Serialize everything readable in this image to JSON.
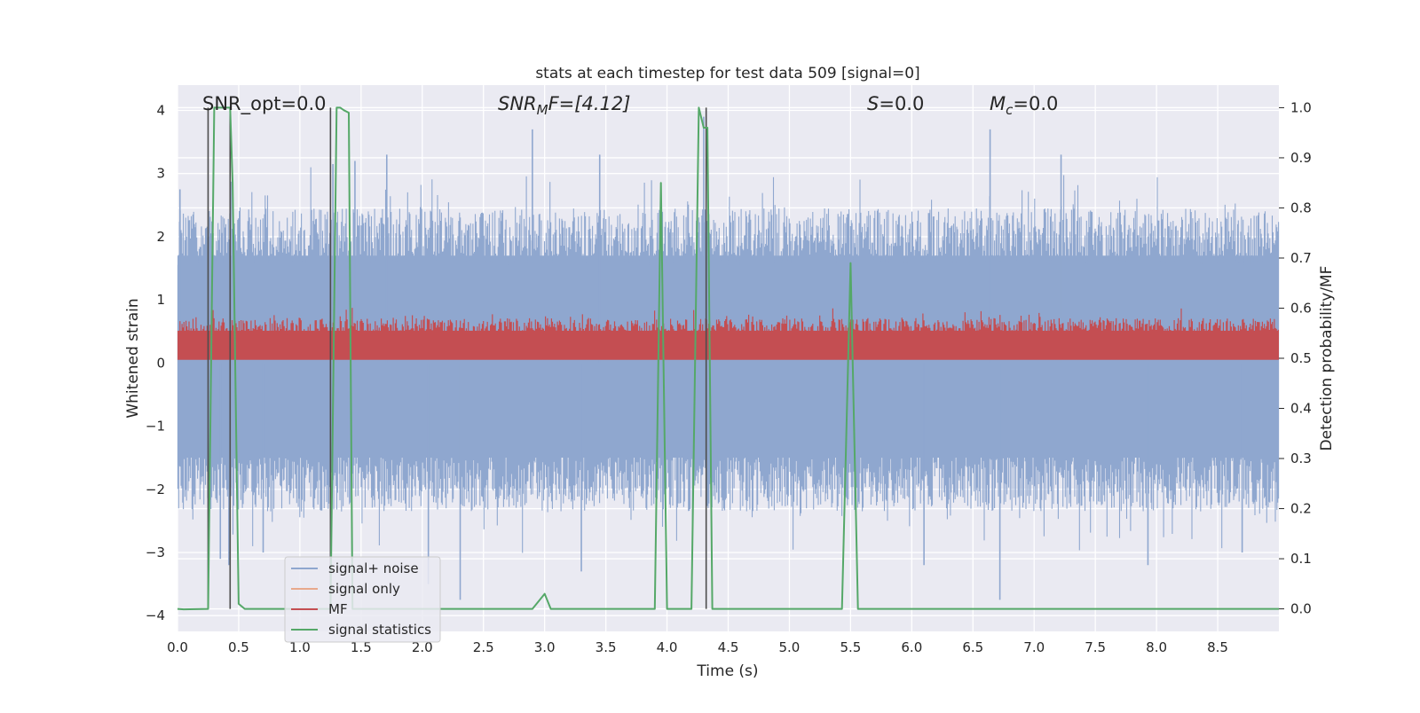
{
  "chart_data": {
    "type": "line",
    "title": "stats at each timestep for test data 509 [signal=0]",
    "xlabel": "Time (s)",
    "ylabel": "Whitened strain",
    "ylabel_right": "Detection probability/MF",
    "xlim": [
      0.0,
      9.0
    ],
    "ylim": [
      -4.25,
      4.4
    ],
    "ylim_right": [
      -0.045,
      1.045
    ],
    "x_ticks": [
      "0.0",
      "0.5",
      "1.0",
      "1.5",
      "2.0",
      "2.5",
      "3.0",
      "3.5",
      "4.0",
      "4.5",
      "5.0",
      "5.5",
      "6.0",
      "6.5",
      "7.0",
      "7.5",
      "8.0",
      "8.5"
    ],
    "y_ticks": [
      "4",
      "3",
      "2",
      "1",
      "0",
      "−1",
      "−2",
      "−3",
      "−4"
    ],
    "y_ticks_right": [
      "1.0",
      "0.9",
      "0.8",
      "0.7",
      "0.6",
      "0.5",
      "0.4",
      "0.3",
      "0.2",
      "0.1",
      "0.0"
    ],
    "grid": true,
    "legend_placement": "lower-left",
    "annotations": {
      "snr_opt": "SNR_opt=0.0",
      "snr_mf_main": "SNR",
      "snr_mf_sub": "M",
      "snr_mf_rest": "F=[4.12]",
      "s_italic": "S",
      "s_rest": "=0.0",
      "mc_main": "M",
      "mc_sub": "c",
      "mc_rest": "=0.0"
    },
    "series": [
      {
        "name": "signal+ noise",
        "color": "#8fa7cf",
        "style": "noise band, envelope about ±2.0 with spikes",
        "spikes": [
          [
            0.02,
            2.75
          ],
          [
            0.35,
            -3.1
          ],
          [
            0.42,
            -3.2
          ],
          [
            0.7,
            -3.0
          ],
          [
            1.27,
            3.15
          ],
          [
            1.45,
            3.2
          ],
          [
            1.71,
            3.3
          ],
          [
            2.05,
            -3.5
          ],
          [
            2.31,
            -3.75
          ],
          [
            2.9,
            3.7
          ],
          [
            3.3,
            -3.3
          ],
          [
            3.45,
            3.3
          ],
          [
            4.3,
            3.9
          ],
          [
            6.1,
            -3.2
          ],
          [
            6.64,
            3.7
          ],
          [
            6.72,
            -3.75
          ],
          [
            7.22,
            3.3
          ],
          [
            7.93,
            -3.2
          ],
          [
            8.7,
            -3.0
          ]
        ]
      },
      {
        "name": "signal only",
        "color": "#e8a98c",
        "values": []
      },
      {
        "name": "MF",
        "color": "#c44e52",
        "style": "band between about 0.5 and 0.6 on the right axis"
      },
      {
        "name": "signal statistics",
        "color": "#55a868",
        "x": [
          0.0,
          0.05,
          0.25,
          0.3,
          0.33,
          0.36,
          0.4,
          0.43,
          0.45,
          0.5,
          0.55,
          0.6,
          1.0,
          1.25,
          1.3,
          1.33,
          1.36,
          1.4,
          1.43,
          1.5,
          2.0,
          2.5,
          2.9,
          3.0,
          3.05,
          3.5,
          3.9,
          3.95,
          4.0,
          4.06,
          4.1,
          4.2,
          4.26,
          4.3,
          4.33,
          4.37,
          4.5,
          5.0,
          5.43,
          5.5,
          5.56,
          6.0,
          7.0,
          8.0,
          9.0
        ],
        "values": [
          0.0,
          -0.001,
          0.0,
          1.0,
          1.0,
          1.0,
          1.0,
          1.0,
          0.85,
          0.01,
          0.0,
          0.0,
          0.0,
          0.0,
          1.0,
          1.0,
          0.995,
          0.99,
          0.0,
          0.0,
          0.0,
          0.0,
          0.0,
          0.03,
          0.0,
          0.0,
          0.0,
          0.85,
          0.0,
          0.0,
          0.0,
          0.0,
          1.0,
          0.96,
          0.96,
          0.0,
          0.0,
          0.0,
          0.0,
          0.69,
          0.0,
          0.0,
          0.0,
          0.0,
          0.0
        ]
      }
    ],
    "vlines": [
      0.25,
      0.43,
      1.25,
      4.32
    ],
    "vline_color": "#4d4d4d"
  }
}
